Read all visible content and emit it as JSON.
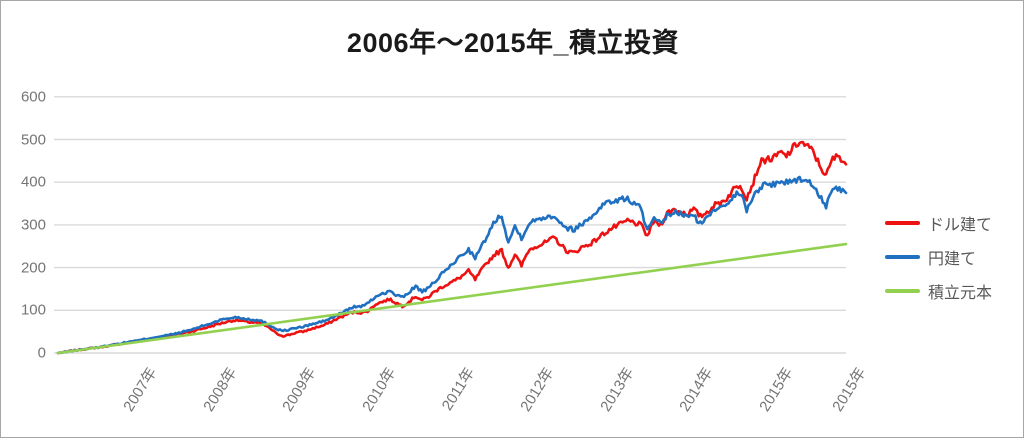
{
  "chart_data": {
    "type": "line",
    "title": "2006年～2015年_積立投資",
    "xlabel": "",
    "ylabel": "",
    "grid": "horizontal",
    "legend_position": "right",
    "y_axis": {
      "range": [
        0,
        600
      ],
      "ticks": [
        0,
        100,
        200,
        300,
        400,
        500,
        600
      ]
    },
    "x_axis": {
      "unit": "decimal_year",
      "start": 2006.0,
      "step": 0.08333,
      "tick_positions": [
        2007,
        2008,
        2009,
        2010,
        2011,
        2012,
        2013,
        2014,
        2015,
        2015.917
      ],
      "tick_labels": [
        "2007年",
        "2008年",
        "2009年",
        "2010年",
        "2011年",
        "2012年",
        "2013年",
        "2014年",
        "2015年",
        "2015年"
      ]
    },
    "series": [
      {
        "name": "ドル建て",
        "color": "#EE1111",
        "values": [
          0,
          2,
          5,
          7,
          9,
          11,
          13,
          15,
          18,
          20,
          23,
          26,
          28,
          31,
          33,
          36,
          38,
          41,
          44,
          47,
          50,
          54,
          58,
          62,
          67,
          71,
          75,
          77,
          74,
          72,
          71,
          67,
          58,
          45,
          40,
          43,
          48,
          50,
          55,
          60,
          64,
          71,
          79,
          86,
          93,
          96,
          94,
          100,
          115,
          120,
          126,
          118,
          110,
          120,
          133,
          124,
          132,
          145,
          155,
          163,
          170,
          180,
          192,
          172,
          195,
          215,
          232,
          240,
          200,
          231,
          204,
          239,
          250,
          254,
          262,
          270,
          252,
          237,
          235,
          247,
          253,
          262,
          275,
          286,
          295,
          302,
          310,
          305,
          300,
          274,
          309,
          300,
          328,
          336,
          331,
          326,
          336,
          320,
          330,
          345,
          352,
          362,
          383,
          395,
          364,
          400,
          445,
          455,
          454,
          469,
          461,
          480,
          495,
          485,
          473,
          440,
          415,
          455,
          462,
          442
        ]
      },
      {
        "name": "円建て",
        "color": "#1F70C1",
        "values": [
          0,
          2,
          5,
          7,
          9,
          11,
          13,
          16,
          19,
          21,
          24,
          27,
          29,
          32,
          35,
          38,
          40,
          43,
          46,
          50,
          54,
          59,
          64,
          69,
          75,
          79,
          82,
          84,
          81,
          79,
          77,
          73,
          65,
          56,
          52,
          55,
          59,
          61,
          66,
          70,
          74,
          80,
          87,
          95,
          104,
          109,
          110,
          118,
          133,
          139,
          145,
          136,
          130,
          142,
          157,
          143,
          152,
          169,
          185,
          200,
          215,
          230,
          243,
          222,
          250,
          280,
          310,
          325,
          258,
          297,
          270,
          301,
          310,
          317,
          320,
          321,
          305,
          291,
          290,
          301,
          312,
          325,
          345,
          353,
          356,
          359,
          362,
          350,
          340,
          286,
          313,
          302,
          322,
          329,
          326,
          320,
          321,
          303,
          315,
          335,
          344,
          352,
          368,
          375,
          336,
          365,
          390,
          395,
          395,
          403,
          399,
          404,
          408,
          402,
          395,
          370,
          344,
          380,
          386,
          375
        ]
      },
      {
        "name": "積立元本",
        "color": "#92D050",
        "values_linear": {
          "start": 0,
          "end": 255
        }
      }
    ]
  },
  "colors": {
    "gridline": "#D9D9D9",
    "axis_label": "#757575",
    "legend_text": "#595959",
    "title_text": "#1a1a1a",
    "frame_border": "#A6A6A6",
    "background": "#FFFFFF"
  }
}
